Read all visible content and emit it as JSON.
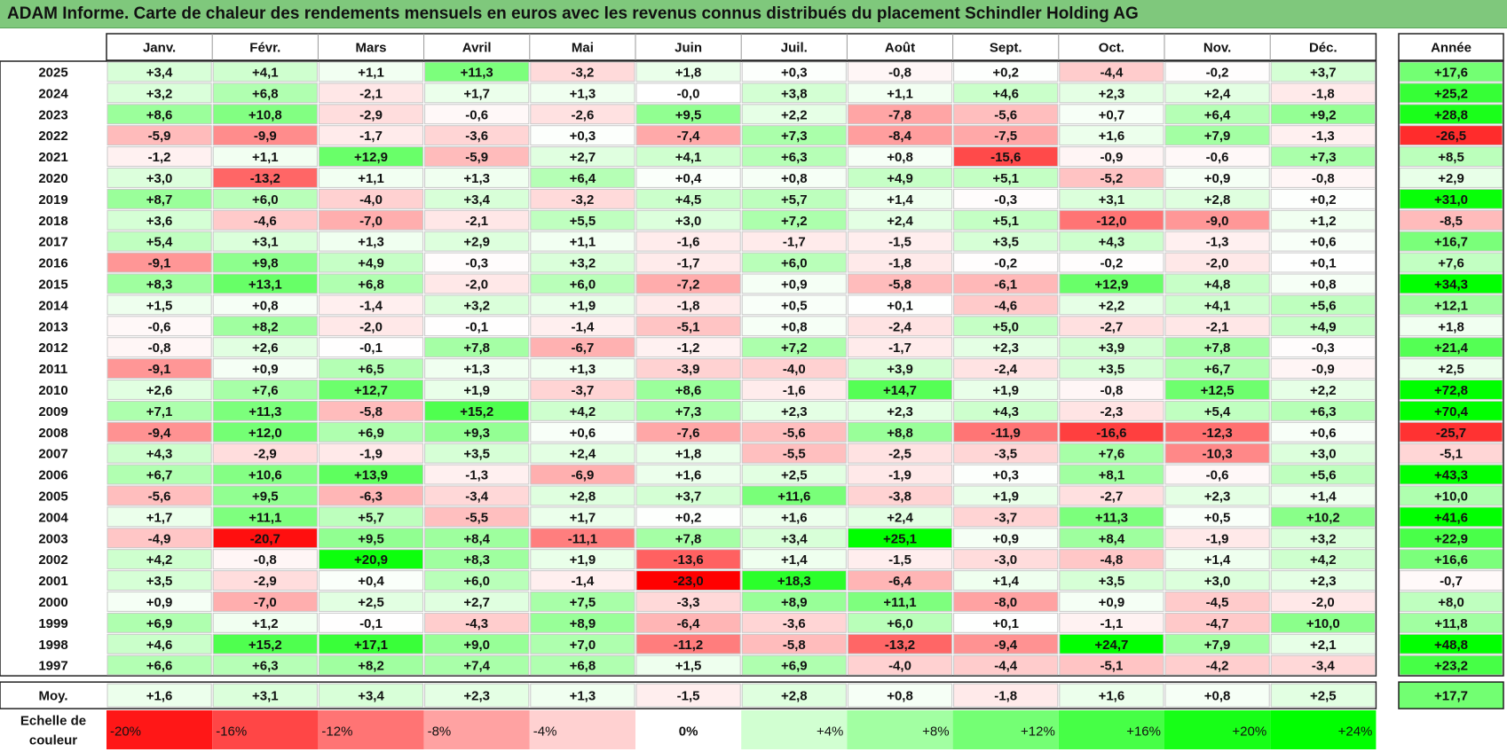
{
  "title": "ADAM Informe. Carte de chaleur des rendements mensuels en euros avec les revenus connus distribués du placement Schindler Holding AG",
  "chart_data": {
    "type": "heatmap",
    "months": [
      "Janv.",
      "Févr.",
      "Mars",
      "Avril",
      "Mai",
      "Juin",
      "Juil.",
      "Août",
      "Sept.",
      "Oct.",
      "Nov.",
      "Déc."
    ],
    "year_header": "Année",
    "rows": [
      {
        "label": "2025",
        "values": [
          "+3,4",
          "+4,1",
          "+1,1",
          "+11,3",
          "-3,2",
          "+1,8",
          "+0,3",
          "-0,8",
          "+0,2",
          "-4,4",
          "-0,2",
          "+3,7"
        ],
        "year": "+17,6"
      },
      {
        "label": "2024",
        "values": [
          "+3,2",
          "+6,8",
          "-2,1",
          "+1,7",
          "+1,3",
          "-0,0",
          "+3,8",
          "+1,1",
          "+4,6",
          "+2,3",
          "+2,4",
          "-1,8"
        ],
        "year": "+25,2"
      },
      {
        "label": "2023",
        "values": [
          "+8,6",
          "+10,8",
          "-2,9",
          "-0,6",
          "-2,6",
          "+9,5",
          "+2,2",
          "-7,8",
          "-5,6",
          "+0,7",
          "+6,4",
          "+9,2"
        ],
        "year": "+28,8"
      },
      {
        "label": "2022",
        "values": [
          "-5,9",
          "-9,9",
          "-1,7",
          "-3,6",
          "+0,3",
          "-7,4",
          "+7,3",
          "-8,4",
          "-7,5",
          "+1,6",
          "+7,9",
          "-1,3"
        ],
        "year": "-26,5"
      },
      {
        "label": "2021",
        "values": [
          "-1,2",
          "+1,1",
          "+12,9",
          "-5,9",
          "+2,7",
          "+4,1",
          "+6,3",
          "+0,8",
          "-15,6",
          "-0,9",
          "-0,6",
          "+7,3"
        ],
        "year": "+8,5"
      },
      {
        "label": "2020",
        "values": [
          "+3,0",
          "-13,2",
          "+1,1",
          "+1,3",
          "+6,4",
          "+0,4",
          "+0,8",
          "+4,9",
          "+5,1",
          "-5,2",
          "+0,9",
          "-0,8"
        ],
        "year": "+2,9"
      },
      {
        "label": "2019",
        "values": [
          "+8,7",
          "+6,0",
          "-4,0",
          "+3,4",
          "-3,2",
          "+4,5",
          "+5,7",
          "+1,4",
          "-0,3",
          "+3,1",
          "+2,8",
          "+0,2"
        ],
        "year": "+31,0"
      },
      {
        "label": "2018",
        "values": [
          "+3,6",
          "-4,6",
          "-7,0",
          "-2,1",
          "+5,5",
          "+3,0",
          "+7,2",
          "+2,4",
          "+5,1",
          "-12,0",
          "-9,0",
          "+1,2"
        ],
        "year": "-8,5"
      },
      {
        "label": "2017",
        "values": [
          "+5,4",
          "+3,1",
          "+1,3",
          "+2,9",
          "+1,1",
          "-1,6",
          "-1,7",
          "-1,5",
          "+3,5",
          "+4,3",
          "-1,3",
          "+0,6"
        ],
        "year": "+16,7"
      },
      {
        "label": "2016",
        "values": [
          "-9,1",
          "+9,8",
          "+4,9",
          "-0,3",
          "+3,2",
          "-1,7",
          "+6,0",
          "-1,8",
          "-0,2",
          "-0,2",
          "-2,0",
          "+0,1"
        ],
        "year": "+7,6"
      },
      {
        "label": "2015",
        "values": [
          "+8,3",
          "+13,1",
          "+6,8",
          "-2,0",
          "+6,0",
          "-7,2",
          "+0,9",
          "-5,8",
          "-6,1",
          "+12,9",
          "+4,8",
          "+0,8"
        ],
        "year": "+34,3"
      },
      {
        "label": "2014",
        "values": [
          "+1,5",
          "+0,8",
          "-1,4",
          "+3,2",
          "+1,9",
          "-1,8",
          "+0,5",
          "+0,1",
          "-4,6",
          "+2,2",
          "+4,1",
          "+5,6"
        ],
        "year": "+12,1"
      },
      {
        "label": "2013",
        "values": [
          "-0,6",
          "+8,2",
          "-2,0",
          "-0,1",
          "-1,4",
          "-5,1",
          "+0,8",
          "-2,4",
          "+5,0",
          "-2,7",
          "-2,1",
          "+4,9"
        ],
        "year": "+1,8"
      },
      {
        "label": "2012",
        "values": [
          "-0,8",
          "+2,6",
          "-0,1",
          "+7,8",
          "-6,7",
          "-1,2",
          "+7,2",
          "-1,7",
          "+2,3",
          "+3,9",
          "+7,8",
          "-0,3"
        ],
        "year": "+21,4"
      },
      {
        "label": "2011",
        "values": [
          "-9,1",
          "+0,9",
          "+6,5",
          "+1,3",
          "+1,3",
          "-3,9",
          "-4,0",
          "+3,9",
          "-2,4",
          "+3,5",
          "+6,7",
          "-0,9"
        ],
        "year": "+2,5"
      },
      {
        "label": "2010",
        "values": [
          "+2,6",
          "+7,6",
          "+12,7",
          "+1,9",
          "-3,7",
          "+8,6",
          "-1,6",
          "+14,7",
          "+1,9",
          "-0,8",
          "+12,5",
          "+2,2"
        ],
        "year": "+72,8"
      },
      {
        "label": "2009",
        "values": [
          "+7,1",
          "+11,3",
          "-5,8",
          "+15,2",
          "+4,2",
          "+7,3",
          "+2,3",
          "+2,3",
          "+4,3",
          "-2,3",
          "+5,4",
          "+6,3"
        ],
        "year": "+70,4"
      },
      {
        "label": "2008",
        "values": [
          "-9,4",
          "+12,0",
          "+6,9",
          "+9,3",
          "+0,6",
          "-7,6",
          "-5,6",
          "+8,8",
          "-11,9",
          "-16,6",
          "-12,3",
          "+0,6"
        ],
        "year": "-25,7"
      },
      {
        "label": "2007",
        "values": [
          "+4,3",
          "-2,9",
          "-1,9",
          "+3,5",
          "+2,4",
          "+1,8",
          "-5,5",
          "-2,5",
          "-3,5",
          "+7,6",
          "-10,3",
          "+3,0"
        ],
        "year": "-5,1"
      },
      {
        "label": "2006",
        "values": [
          "+6,7",
          "+10,6",
          "+13,9",
          "-1,3",
          "-6,9",
          "+1,6",
          "+2,5",
          "-1,9",
          "+0,3",
          "+8,1",
          "-0,6",
          "+5,6"
        ],
        "year": "+43,3"
      },
      {
        "label": "2005",
        "values": [
          "-5,6",
          "+9,5",
          "-6,3",
          "-3,4",
          "+2,8",
          "+3,7",
          "+11,6",
          "-3,8",
          "+1,9",
          "-2,7",
          "+2,3",
          "+1,4"
        ],
        "year": "+10,0"
      },
      {
        "label": "2004",
        "values": [
          "+1,7",
          "+11,1",
          "+5,7",
          "-5,5",
          "+1,7",
          "+0,2",
          "+1,6",
          "+2,4",
          "-3,7",
          "+11,3",
          "+0,5",
          "+10,2"
        ],
        "year": "+41,6"
      },
      {
        "label": "2003",
        "values": [
          "-4,9",
          "-20,7",
          "+9,5",
          "+8,4",
          "-11,1",
          "+7,8",
          "+3,4",
          "+25,1",
          "+0,9",
          "+8,4",
          "-1,9",
          "+3,2"
        ],
        "year": "+22,9"
      },
      {
        "label": "2002",
        "values": [
          "+4,2",
          "-0,8",
          "+20,9",
          "+8,3",
          "+1,9",
          "-13,6",
          "+1,4",
          "-1,5",
          "-3,0",
          "-4,8",
          "+1,4",
          "+4,2"
        ],
        "year": "+16,6"
      },
      {
        "label": "2001",
        "values": [
          "+3,5",
          "-2,9",
          "+0,4",
          "+6,0",
          "-1,4",
          "-23,0",
          "+18,3",
          "-6,4",
          "+1,4",
          "+3,5",
          "+3,0",
          "+2,3"
        ],
        "year": "-0,7"
      },
      {
        "label": "2000",
        "values": [
          "+0,9",
          "-7,0",
          "+2,5",
          "+2,7",
          "+7,5",
          "-3,3",
          "+8,9",
          "+11,1",
          "-8,0",
          "+0,9",
          "-4,5",
          "-2,0"
        ],
        "year": "+8,0"
      },
      {
        "label": "1999",
        "values": [
          "+6,9",
          "+1,2",
          "-0,1",
          "-4,3",
          "+8,9",
          "-6,4",
          "-3,6",
          "+6,0",
          "+0,1",
          "-1,1",
          "-4,7",
          "+10,0"
        ],
        "year": "+11,8"
      },
      {
        "label": "1998",
        "values": [
          "+4,6",
          "+15,2",
          "+17,1",
          "+9,0",
          "+7,0",
          "-11,2",
          "-5,8",
          "-13,2",
          "-9,4",
          "+24,7",
          "+7,9",
          "+2,1"
        ],
        "year": "+48,8"
      },
      {
        "label": "1997",
        "values": [
          "+6,6",
          "+6,3",
          "+8,2",
          "+7,4",
          "+6,8",
          "+1,5",
          "+6,9",
          "-4,0",
          "-4,4",
          "-5,1",
          "-4,2",
          "-3,4"
        ],
        "year": "+23,2"
      }
    ],
    "average": {
      "label": "Moy.",
      "values": [
        "+1,6",
        "+3,1",
        "+3,4",
        "+2,3",
        "+1,3",
        "-1,5",
        "+2,8",
        "+0,8",
        "-1,8",
        "+1,6",
        "+0,8",
        "+2,5"
      ],
      "year": "+17,7"
    },
    "scale_label": [
      "Echelle de",
      "couleur"
    ],
    "scale": [
      {
        "label": "-20%",
        "value": -20
      },
      {
        "label": "-16%",
        "value": -16
      },
      {
        "label": "-12%",
        "value": -12
      },
      {
        "label": "-8%",
        "value": -8
      },
      {
        "label": "-4%",
        "value": -4
      },
      {
        "label": "0%",
        "value": 0
      },
      {
        "label": "+4%",
        "value": 4
      },
      {
        "label": "+8%",
        "value": 8
      },
      {
        "label": "+12%",
        "value": 12
      },
      {
        "label": "+16%",
        "value": 16
      },
      {
        "label": "+20%",
        "value": 20
      },
      {
        "label": "+24%",
        "value": 24
      }
    ],
    "colors": {
      "negative_max": "#ff0000",
      "neutral": "#ffffff",
      "positive_max": "#00ff00",
      "title_bar": "#7fc87c"
    }
  }
}
